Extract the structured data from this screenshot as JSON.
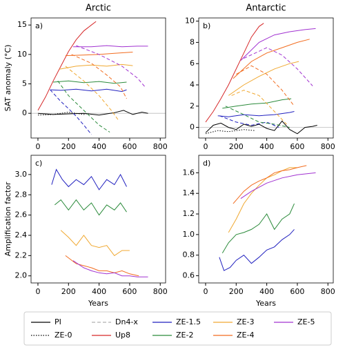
{
  "chart_data": [
    {
      "type": "line",
      "title": "Arctic",
      "panel_label": "a)",
      "ylabel": "SAT anomaly (°C)",
      "xlim": [
        -45,
        835
      ],
      "ylim": [
        -4.2,
        16.2
      ],
      "xticks": [
        0,
        200,
        400,
        600,
        800
      ],
      "yticks": [
        0,
        5,
        10,
        15
      ],
      "zero_line": true,
      "series": [
        {
          "color": "#000000",
          "style": "solid",
          "x": [
            0,
            100,
            200,
            300,
            400,
            500,
            560,
            620,
            680,
            720
          ],
          "values": [
            0,
            -0.2,
            -0.1,
            0,
            -0.3,
            0.1,
            0.5,
            -0.2,
            0.2,
            0
          ]
        },
        {
          "color": "#000000",
          "style": "dotted",
          "x": [
            0,
            100,
            200,
            300,
            330
          ],
          "values": [
            -0.3,
            -0.2,
            0.2,
            -0.2,
            0
          ]
        },
        {
          "color": "#d62728",
          "style": "solid",
          "x": [
            0,
            50,
            100,
            150,
            200,
            250,
            300,
            350,
            380
          ],
          "values": [
            0.5,
            2.8,
            5.5,
            8,
            10.5,
            12.5,
            14,
            15,
            15.6
          ]
        },
        {
          "color": "#1f1fbf",
          "style": "solid",
          "x": [
            80,
            150,
            250,
            350,
            450,
            550,
            580
          ],
          "values": [
            4,
            3.9,
            4.1,
            3.8,
            4.1,
            3.7,
            4
          ]
        },
        {
          "color": "#1f1fbf",
          "style": "dashed",
          "x": [
            80,
            150,
            200,
            250,
            300,
            350
          ],
          "values": [
            4,
            2,
            0.8,
            -0.5,
            -2,
            -3.6
          ]
        },
        {
          "color": "#2a8a3a",
          "style": "solid",
          "x": [
            100,
            200,
            300,
            400,
            500,
            580
          ],
          "values": [
            5.3,
            5.5,
            5.2,
            5.4,
            5.1,
            5.3
          ]
        },
        {
          "color": "#2a8a3a",
          "style": "dashed",
          "x": [
            130,
            200,
            300,
            400,
            470
          ],
          "values": [
            5.5,
            3,
            0.5,
            -2,
            -3.2
          ]
        },
        {
          "color": "#f0a830",
          "style": "solid",
          "x": [
            140,
            250,
            350,
            450,
            550,
            620
          ],
          "values": [
            7.5,
            8,
            8.2,
            8,
            8.3,
            8.1
          ]
        },
        {
          "color": "#f0a830",
          "style": "dashed",
          "x": [
            180,
            300,
            400,
            480,
            530
          ],
          "values": [
            8,
            5.5,
            3,
            0.5,
            -1.3
          ]
        },
        {
          "color": "#f26b1d",
          "style": "solid",
          "x": [
            180,
            300,
            400,
            500,
            620
          ],
          "values": [
            9.8,
            9.9,
            10,
            10.2,
            10.4
          ]
        },
        {
          "color": "#f26b1d",
          "style": "dashed",
          "x": [
            220,
            350,
            450,
            540,
            580
          ],
          "values": [
            10,
            8.5,
            6.5,
            4.5,
            2.5
          ]
        },
        {
          "color": "#a030d0",
          "style": "solid",
          "x": [
            230,
            350,
            450,
            550,
            650,
            720
          ],
          "values": [
            11.3,
            11.3,
            11.5,
            11.3,
            11.4,
            11.4
          ]
        },
        {
          "color": "#a030d0",
          "style": "dashed",
          "x": [
            250,
            400,
            550,
            650,
            700
          ],
          "values": [
            11.5,
            10,
            8,
            6,
            4.5
          ]
        }
      ]
    },
    {
      "type": "line",
      "title": "Antarctic",
      "panel_label": "b)",
      "xlim": [
        -45,
        835
      ],
      "ylim": [
        -1,
        10.3
      ],
      "xticks": [
        0,
        200,
        400,
        600,
        800
      ],
      "yticks": [
        0,
        2,
        4,
        6,
        8,
        10
      ],
      "zero_line": true,
      "series": [
        {
          "color": "#000000",
          "style": "solid",
          "x": [
            0,
            50,
            100,
            150,
            200,
            250,
            300,
            350,
            400,
            450,
            500,
            550,
            600,
            650,
            700,
            730
          ],
          "values": [
            -0.5,
            0.2,
            0.4,
            0,
            -0.2,
            0.3,
            0.1,
            0.3,
            -0.1,
            -0.3,
            0.6,
            -0.2,
            -0.6,
            0,
            0.1,
            0.2
          ]
        },
        {
          "color": "#000000",
          "style": "dotted",
          "x": [
            0,
            80,
            150,
            250,
            320
          ],
          "values": [
            -0.6,
            -0.3,
            -0.4,
            -0.2,
            -0.3
          ]
        },
        {
          "color": "#d62728",
          "style": "solid",
          "x": [
            0,
            50,
            100,
            150,
            200,
            250,
            300,
            350,
            380
          ],
          "values": [
            0.5,
            1.5,
            2.7,
            4,
            5.5,
            7,
            8.5,
            9.5,
            9.8
          ]
        },
        {
          "color": "#1f1fbf",
          "style": "solid",
          "x": [
            80,
            150,
            250,
            350,
            450,
            550,
            580
          ],
          "values": [
            1.1,
            1,
            1.2,
            1.1,
            1.2,
            1.4,
            1.5
          ]
        },
        {
          "color": "#1f1fbf",
          "style": "dashed",
          "x": [
            90,
            200,
            300,
            400,
            480
          ],
          "values": [
            1.1,
            0.5,
            0.2,
            0.5,
            0
          ]
        },
        {
          "color": "#2a8a3a",
          "style": "solid",
          "x": [
            110,
            200,
            300,
            400,
            500,
            560
          ],
          "values": [
            1.8,
            2,
            2.2,
            2.3,
            2.6,
            2.7
          ]
        },
        {
          "color": "#2a8a3a",
          "style": "dashed",
          "x": [
            130,
            250,
            350,
            450,
            550
          ],
          "values": [
            2,
            1.2,
            0.5,
            0.3,
            0
          ]
        },
        {
          "color": "#f0a830",
          "style": "solid",
          "x": [
            150,
            250,
            350,
            450,
            550,
            610
          ],
          "values": [
            3,
            4,
            4.8,
            5.5,
            6,
            6.2
          ]
        },
        {
          "color": "#f0a830",
          "style": "dashed",
          "x": [
            170,
            250,
            350,
            450,
            530
          ],
          "values": [
            3,
            3.5,
            3,
            1.5,
            0.3
          ]
        },
        {
          "color": "#f26b1d",
          "style": "solid",
          "x": [
            180,
            300,
            400,
            500,
            600,
            680
          ],
          "values": [
            4.6,
            6.2,
            7,
            7.5,
            8,
            8.3
          ]
        },
        {
          "color": "#f26b1d",
          "style": "dashed",
          "x": [
            200,
            300,
            400,
            500,
            580
          ],
          "values": [
            5,
            5.8,
            5,
            3.5,
            2
          ]
        },
        {
          "color": "#a030d0",
          "style": "solid",
          "x": [
            230,
            350,
            450,
            550,
            650,
            720
          ],
          "values": [
            6.3,
            8,
            8.7,
            9,
            9.2,
            9.3
          ]
        },
        {
          "color": "#a030d0",
          "style": "dashed",
          "x": [
            250,
            400,
            500,
            600,
            700
          ],
          "values": [
            6.5,
            7.5,
            6.8,
            5.5,
            3.9
          ]
        }
      ]
    },
    {
      "type": "line",
      "panel_label": "c)",
      "ylabel": "Amplification factor",
      "xlabel": "Years",
      "xlim": [
        -45,
        835
      ],
      "ylim": [
        1.93,
        3.19
      ],
      "xticks": [
        0,
        200,
        400,
        600,
        800
      ],
      "yticks": [
        {
          "value": 2,
          "label": "2.0"
        },
        2.2,
        2.4,
        2.6,
        2.8,
        {
          "value": 3,
          "label": "3.0"
        }
      ],
      "series": [
        {
          "color": "#1f1fbf",
          "style": "solid",
          "x": [
            90,
            120,
            160,
            200,
            250,
            300,
            350,
            400,
            450,
            500,
            540,
            580
          ],
          "values": [
            2.9,
            3.05,
            2.95,
            2.88,
            2.95,
            2.9,
            2.98,
            2.85,
            2.95,
            2.9,
            3,
            2.88
          ]
        },
        {
          "color": "#2a8a3a",
          "style": "solid",
          "x": [
            110,
            150,
            200,
            250,
            300,
            350,
            400,
            450,
            500,
            540,
            580
          ],
          "values": [
            2.7,
            2.75,
            2.65,
            2.75,
            2.65,
            2.72,
            2.6,
            2.7,
            2.65,
            2.72,
            2.63
          ]
        },
        {
          "color": "#f0a830",
          "style": "solid",
          "x": [
            150,
            200,
            250,
            300,
            350,
            400,
            450,
            500,
            550,
            600
          ],
          "values": [
            2.45,
            2.38,
            2.3,
            2.4,
            2.3,
            2.28,
            2.3,
            2.2,
            2.25,
            2.25
          ]
        },
        {
          "color": "#f26b1d",
          "style": "solid",
          "x": [
            180,
            250,
            300,
            350,
            400,
            450,
            500,
            550,
            600,
            660
          ],
          "values": [
            2.2,
            2.12,
            2.1,
            2.08,
            2.05,
            2.05,
            2.03,
            2.05,
            2.02,
            2
          ]
        },
        {
          "color": "#a030d0",
          "style": "solid",
          "x": [
            230,
            300,
            350,
            400,
            450,
            500,
            550,
            600,
            650,
            720
          ],
          "values": [
            2.15,
            2.08,
            2.05,
            2.03,
            2.02,
            2.03,
            2,
            2,
            1.99,
            1.99
          ]
        }
      ]
    },
    {
      "type": "line",
      "panel_label": "d)",
      "xlabel": "Years",
      "xlim": [
        -45,
        835
      ],
      "ylim": [
        0.53,
        1.77
      ],
      "xticks": [
        0,
        200,
        400,
        600,
        800
      ],
      "yticks": [
        0.6,
        0.8,
        {
          "value": 1,
          "label": "1.0"
        },
        1.2,
        1.4,
        1.6
      ],
      "series": [
        {
          "color": "#1f1fbf",
          "style": "solid",
          "x": [
            90,
            120,
            160,
            200,
            250,
            300,
            350,
            400,
            450,
            500,
            550,
            580
          ],
          "values": [
            0.78,
            0.65,
            0.68,
            0.75,
            0.8,
            0.72,
            0.78,
            0.85,
            0.88,
            0.95,
            1,
            1.05
          ]
        },
        {
          "color": "#2a8a3a",
          "style": "solid",
          "x": [
            110,
            150,
            200,
            250,
            300,
            350,
            400,
            450,
            500,
            550,
            580
          ],
          "values": [
            0.82,
            0.92,
            1,
            1.02,
            1.05,
            1.1,
            1.2,
            1.05,
            1.15,
            1.2,
            1.3
          ]
        },
        {
          "color": "#f0a830",
          "style": "solid",
          "x": [
            150,
            200,
            250,
            300,
            350,
            400,
            450,
            500,
            550,
            600
          ],
          "values": [
            1.02,
            1.15,
            1.3,
            1.4,
            1.48,
            1.55,
            1.58,
            1.62,
            1.65,
            1.65
          ]
        },
        {
          "color": "#f26b1d",
          "style": "solid",
          "x": [
            180,
            250,
            300,
            350,
            400,
            450,
            500,
            550,
            600,
            660
          ],
          "values": [
            1.3,
            1.42,
            1.48,
            1.52,
            1.55,
            1.6,
            1.62,
            1.63,
            1.65,
            1.67
          ]
        },
        {
          "color": "#a030d0",
          "style": "solid",
          "x": [
            230,
            300,
            400,
            500,
            600,
            720
          ],
          "values": [
            1.35,
            1.42,
            1.5,
            1.55,
            1.58,
            1.6
          ]
        }
      ]
    }
  ],
  "legend": [
    {
      "name": "PI",
      "color": "#000000",
      "style": "solid"
    },
    {
      "name": "ZE-0",
      "color": "#000000",
      "style": "dotted"
    },
    {
      "name": "Dn4-x",
      "color": "#b0b0b0",
      "style": "dashed"
    },
    {
      "name": "Up8",
      "color": "#d62728",
      "style": "solid"
    },
    {
      "name": "ZE-1.5",
      "color": "#1f1fbf",
      "style": "solid"
    },
    {
      "name": "ZE-2",
      "color": "#2a8a3a",
      "style": "solid"
    },
    {
      "name": "ZE-3",
      "color": "#f0a830",
      "style": "solid"
    },
    {
      "name": "ZE-4",
      "color": "#f26b1d",
      "style": "solid"
    },
    {
      "name": "ZE-5",
      "color": "#a030d0",
      "style": "solid"
    }
  ]
}
